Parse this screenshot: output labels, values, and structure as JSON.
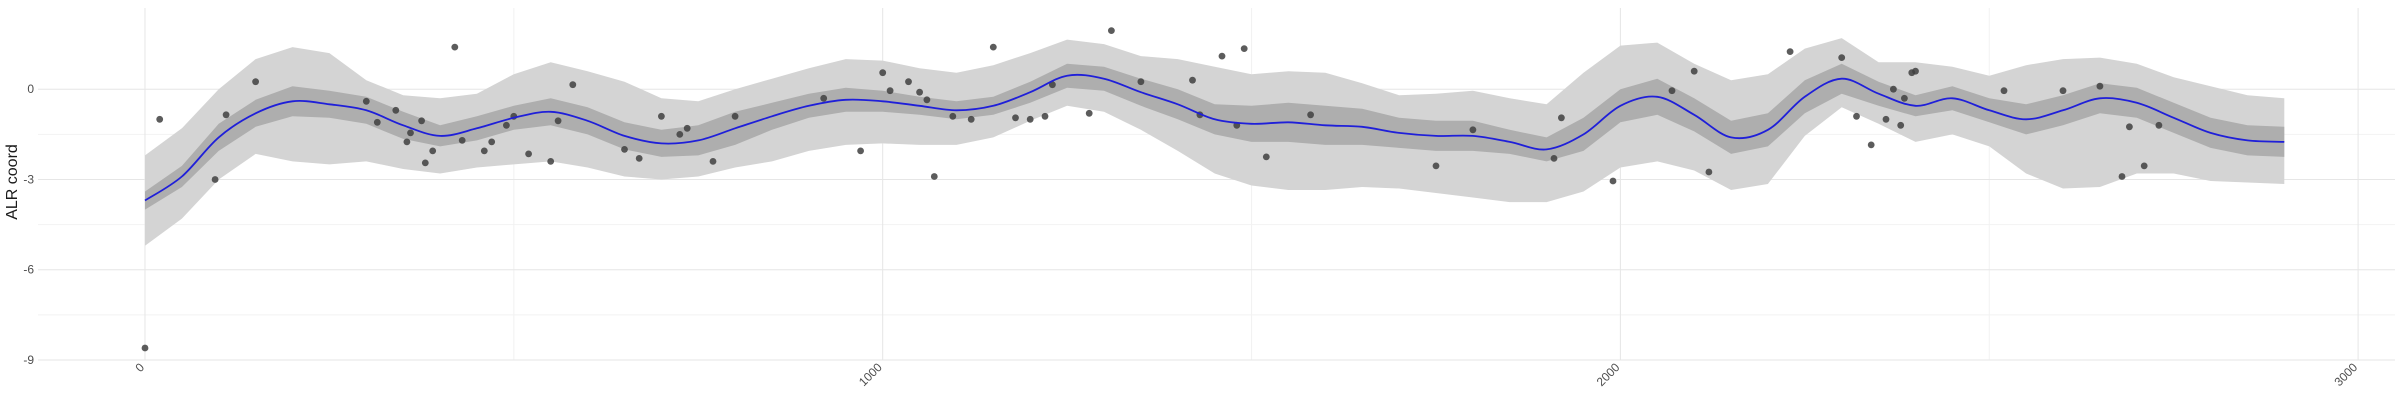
{
  "chart_data": {
    "type": "scatter",
    "title": "",
    "xlabel": "",
    "ylabel": "ALR coord",
    "xlim": [
      -145,
      3050
    ],
    "ylim": [
      -9,
      2.7
    ],
    "x_ticks": [
      0,
      1000,
      2000,
      3000
    ],
    "y_ticks": [
      -9,
      -6,
      -3,
      0
    ],
    "grid": true,
    "colors": {
      "points": "#404040",
      "smooth_line": "#1f1fd9",
      "outer_band": "#d4d4d4",
      "inner_band": "#aeaeae",
      "grid_major": "#e6e6e6",
      "grid_minor": "#f2f2f2"
    },
    "points": [
      [
        0,
        -8.6
      ],
      [
        20,
        -1.0
      ],
      [
        95,
        -3.0
      ],
      [
        110,
        -0.85
      ],
      [
        150,
        0.25
      ],
      [
        300,
        -0.4
      ],
      [
        315,
        -1.1
      ],
      [
        340,
        -0.7
      ],
      [
        355,
        -1.75
      ],
      [
        360,
        -1.45
      ],
      [
        375,
        -1.05
      ],
      [
        380,
        -2.45
      ],
      [
        390,
        -2.05
      ],
      [
        420,
        1.4
      ],
      [
        430,
        -1.7
      ],
      [
        460,
        -2.05
      ],
      [
        470,
        -1.75
      ],
      [
        490,
        -1.2
      ],
      [
        500,
        -0.9
      ],
      [
        520,
        -2.15
      ],
      [
        550,
        -2.4
      ],
      [
        560,
        -1.05
      ],
      [
        580,
        0.15
      ],
      [
        650,
        -2.0
      ],
      [
        670,
        -2.3
      ],
      [
        700,
        -0.9
      ],
      [
        725,
        -1.5
      ],
      [
        735,
        -1.3
      ],
      [
        770,
        -2.4
      ],
      [
        800,
        -0.9
      ],
      [
        920,
        -0.3
      ],
      [
        970,
        -2.05
      ],
      [
        1000,
        0.55
      ],
      [
        1010,
        -0.05
      ],
      [
        1035,
        0.25
      ],
      [
        1050,
        -0.1
      ],
      [
        1060,
        -0.35
      ],
      [
        1070,
        -2.9
      ],
      [
        1095,
        -0.9
      ],
      [
        1120,
        -1.0
      ],
      [
        1150,
        1.4
      ],
      [
        1180,
        -0.95
      ],
      [
        1200,
        -1.0
      ],
      [
        1220,
        -0.9
      ],
      [
        1230,
        0.15
      ],
      [
        1280,
        -0.8
      ],
      [
        1310,
        1.95
      ],
      [
        1350,
        0.25
      ],
      [
        1420,
        0.3
      ],
      [
        1430,
        -0.85
      ],
      [
        1460,
        1.1
      ],
      [
        1480,
        -1.2
      ],
      [
        1490,
        1.35
      ],
      [
        1520,
        -2.25
      ],
      [
        1580,
        -0.85
      ],
      [
        1750,
        -2.55
      ],
      [
        1800,
        -1.35
      ],
      [
        1910,
        -2.3
      ],
      [
        1920,
        -0.95
      ],
      [
        1990,
        -3.05
      ],
      [
        2070,
        -0.05
      ],
      [
        2100,
        0.6
      ],
      [
        2120,
        -2.75
      ],
      [
        2230,
        1.25
      ],
      [
        2300,
        1.05
      ],
      [
        2320,
        -0.9
      ],
      [
        2340,
        -1.85
      ],
      [
        2360,
        -1.0
      ],
      [
        2370,
        0.0
      ],
      [
        2380,
        -1.2
      ],
      [
        2385,
        -0.3
      ],
      [
        2395,
        0.55
      ],
      [
        2400,
        0.6
      ],
      [
        2520,
        -0.05
      ],
      [
        2600,
        -0.05
      ],
      [
        2650,
        0.1
      ],
      [
        2680,
        -2.9
      ],
      [
        2690,
        -1.25
      ],
      [
        2710,
        -2.55
      ],
      [
        2730,
        -1.2
      ]
    ],
    "smooth": {
      "x": [
        0,
        50,
        100,
        150,
        200,
        250,
        300,
        350,
        400,
        450,
        500,
        550,
        600,
        650,
        700,
        750,
        800,
        850,
        900,
        950,
        1000,
        1050,
        1100,
        1150,
        1200,
        1250,
        1300,
        1350,
        1400,
        1450,
        1500,
        1550,
        1600,
        1650,
        1700,
        1750,
        1800,
        1850,
        1900,
        1950,
        2000,
        2050,
        2100,
        2150,
        2200,
        2250,
        2300,
        2350,
        2400,
        2450,
        2500,
        2550,
        2600,
        2650,
        2700,
        2750,
        2800,
        2850,
        2900
      ],
      "fit": [
        -3.7,
        -2.9,
        -1.6,
        -0.8,
        -0.4,
        -0.5,
        -0.7,
        -1.2,
        -1.55,
        -1.3,
        -0.95,
        -0.75,
        -1.05,
        -1.55,
        -1.8,
        -1.7,
        -1.3,
        -0.9,
        -0.55,
        -0.35,
        -0.4,
        -0.55,
        -0.7,
        -0.55,
        -0.1,
        0.45,
        0.35,
        -0.1,
        -0.5,
        -1.0,
        -1.15,
        -1.1,
        -1.2,
        -1.25,
        -1.45,
        -1.55,
        -1.55,
        -1.75,
        -2.0,
        -1.5,
        -0.55,
        -0.25,
        -0.85,
        -1.6,
        -1.35,
        -0.25,
        0.35,
        -0.15,
        -0.55,
        -0.3,
        -0.7,
        -1.0,
        -0.7,
        -0.3,
        -0.45,
        -0.95,
        -1.45,
        -1.7,
        -1.75
      ],
      "inner_lower": [
        -4.0,
        -3.25,
        -2.05,
        -1.25,
        -0.9,
        -0.95,
        -1.15,
        -1.65,
        -1.9,
        -1.7,
        -1.35,
        -1.2,
        -1.5,
        -2.0,
        -2.25,
        -2.2,
        -1.85,
        -1.35,
        -0.95,
        -0.75,
        -0.75,
        -0.85,
        -1.0,
        -0.85,
        -0.45,
        0.05,
        -0.05,
        -0.55,
        -1.0,
        -1.5,
        -1.75,
        -1.75,
        -1.85,
        -1.85,
        -1.95,
        -2.05,
        -2.05,
        -2.15,
        -2.4,
        -2.05,
        -1.1,
        -0.85,
        -1.4,
        -2.15,
        -1.9,
        -0.8,
        -0.15,
        -0.55,
        -0.9,
        -0.7,
        -1.1,
        -1.5,
        -1.2,
        -0.8,
        -0.95,
        -1.45,
        -1.95,
        -2.2,
        -2.25
      ],
      "inner_upper": [
        -3.4,
        -2.55,
        -1.15,
        -0.35,
        0.1,
        -0.05,
        -0.25,
        -0.75,
        -1.2,
        -0.9,
        -0.55,
        -0.3,
        -0.6,
        -1.1,
        -1.35,
        -1.2,
        -0.75,
        -0.45,
        -0.15,
        0.05,
        -0.05,
        -0.25,
        -0.4,
        -0.25,
        0.25,
        0.85,
        0.75,
        0.35,
        0.0,
        -0.5,
        -0.55,
        -0.45,
        -0.55,
        -0.65,
        -0.95,
        -1.05,
        -1.05,
        -1.35,
        -1.6,
        -0.95,
        0.0,
        0.35,
        -0.3,
        -1.05,
        -0.8,
        0.3,
        0.85,
        0.25,
        -0.2,
        0.1,
        -0.3,
        -0.5,
        -0.2,
        0.2,
        0.05,
        -0.45,
        -0.95,
        -1.2,
        -1.25
      ],
      "outer_lower": [
        -5.2,
        -4.3,
        -3.0,
        -2.15,
        -2.4,
        -2.5,
        -2.4,
        -2.65,
        -2.8,
        -2.6,
        -2.5,
        -2.4,
        -2.6,
        -2.9,
        -3.0,
        -2.9,
        -2.6,
        -2.4,
        -2.05,
        -1.85,
        -1.8,
        -1.85,
        -1.85,
        -1.6,
        -1.05,
        -0.55,
        -0.75,
        -1.35,
        -2.05,
        -2.8,
        -3.2,
        -3.35,
        -3.35,
        -3.25,
        -3.3,
        -3.45,
        -3.6,
        -3.75,
        -3.75,
        -3.4,
        -2.6,
        -2.4,
        -2.7,
        -3.35,
        -3.15,
        -1.55,
        -0.6,
        -1.15,
        -1.75,
        -1.5,
        -1.9,
        -2.8,
        -3.3,
        -3.25,
        -2.8,
        -2.8,
        -3.05,
        -3.1,
        -3.15
      ],
      "outer_upper": [
        -2.2,
        -1.3,
        0.0,
        1.0,
        1.4,
        1.2,
        0.3,
        -0.2,
        -0.3,
        -0.15,
        0.5,
        0.9,
        0.6,
        0.25,
        -0.3,
        -0.4,
        0.0,
        0.35,
        0.7,
        1.0,
        0.95,
        0.7,
        0.55,
        0.8,
        1.2,
        1.65,
        1.5,
        1.1,
        1.0,
        0.75,
        0.5,
        0.6,
        0.55,
        0.2,
        -0.2,
        -0.15,
        -0.05,
        -0.3,
        -0.5,
        0.55,
        1.45,
        1.55,
        0.85,
        0.3,
        0.5,
        1.35,
        1.7,
        0.9,
        0.9,
        0.75,
        0.45,
        0.8,
        1.0,
        1.05,
        0.85,
        0.4,
        0.1,
        -0.2,
        -0.3
      ]
    }
  }
}
